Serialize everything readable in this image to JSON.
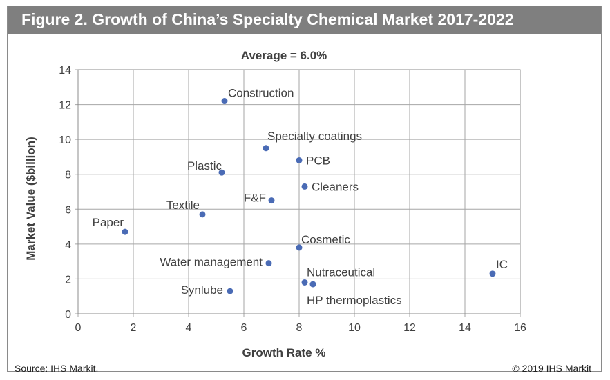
{
  "title": "Figure 2. Growth of China’s Specialty Chemical Market 2017-2022",
  "source": "Source: IHS Markit.",
  "copyright": "© 2019 IHS Markit",
  "colors": {
    "point": "#4a6bb5",
    "title_bar": "#7f7f7f",
    "grid": "#a6a6a6"
  },
  "chart_data": {
    "type": "scatter",
    "subtitle": "Average = 6.0%",
    "xlabel": "Growth Rate %",
    "ylabel": "Market Value ($billion)",
    "xlim": [
      0,
      16
    ],
    "ylim": [
      0,
      14
    ],
    "xticks": [
      0,
      2,
      4,
      6,
      8,
      10,
      12,
      14,
      16
    ],
    "yticks": [
      0,
      2,
      4,
      6,
      8,
      10,
      12,
      14
    ],
    "grid": true,
    "points": [
      {
        "label": "Construction",
        "x": 5.3,
        "y": 12.2
      },
      {
        "label": "Specialty coatings",
        "x": 6.8,
        "y": 9.5
      },
      {
        "label": "PCB",
        "x": 8.0,
        "y": 8.8
      },
      {
        "label": "Plastic",
        "x": 5.2,
        "y": 8.1
      },
      {
        "label": "Cleaners",
        "x": 8.2,
        "y": 7.3
      },
      {
        "label": "F&F",
        "x": 7.0,
        "y": 6.5
      },
      {
        "label": "Textile",
        "x": 4.5,
        "y": 5.7
      },
      {
        "label": "Paper",
        "x": 1.7,
        "y": 4.7
      },
      {
        "label": "Cosmetic",
        "x": 8.0,
        "y": 3.8
      },
      {
        "label": "Water management",
        "x": 6.9,
        "y": 2.9
      },
      {
        "label": "IC",
        "x": 15.0,
        "y": 2.3
      },
      {
        "label": "Nutraceutical",
        "x": 8.2,
        "y": 1.8
      },
      {
        "label": "HP thermoplastics",
        "x": 8.5,
        "y": 1.7
      },
      {
        "label": "Synlube",
        "x": 5.5,
        "y": 1.3
      }
    ]
  }
}
